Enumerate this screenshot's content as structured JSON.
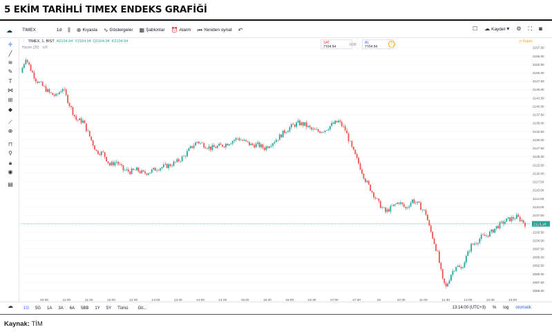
{
  "heading": "5 EKİM TARİHLİ TIMEX ENDEKS GRAFİĞİ",
  "source_label": "Kaynak:",
  "source_value": "TİM",
  "toolbar": {
    "symbol": "TIMEX",
    "interval": "1d",
    "compare": "Kıyasla",
    "indicators": "Göstergeler",
    "templates": "Şablonlar",
    "alert": "Alarm",
    "replay": "Yeniden oynat",
    "save": "Kaydet"
  },
  "legend": {
    "title": "TIMEX, 1, BIST",
    "open": "A2104.94",
    "high": "Y2104.94",
    "low": "D2104.94",
    "close": "K2104.94",
    "ma": "Hacim (20)",
    "extra": "n/A"
  },
  "trade": {
    "sell_label": "SAT",
    "sell_value": "2104.94",
    "spread": "0.00",
    "buy_label": "AL",
    "buy_value": "2104.94",
    "market_status": "Kapalı"
  },
  "bottom": {
    "ranges": [
      "1G",
      "5G",
      "1A",
      "3A",
      "6A",
      "5BB",
      "1Y",
      "5Y",
      "Tümü"
    ],
    "goto": "Git...",
    "time": "13:14:00 (UTC+3)",
    "pct": "%",
    "log": "log",
    "auto": "otomatik"
  },
  "colors": {
    "up": "#26a69a",
    "down": "#ef5350",
    "price_line": "#26a69a",
    "grid": "#f0f3fa"
  },
  "chart_data": {
    "type": "candlestick",
    "symbol": "TIMEX, 1, BIST",
    "last_price": 2104.94,
    "y_ticks": [
      2157.5,
      2155.0,
      2152.5,
      2150.0,
      2147.5,
      2145.0,
      2142.5,
      2140.0,
      2137.5,
      2135.0,
      2132.5,
      2130.0,
      2127.5,
      2125.0,
      2122.5,
      2120.0,
      2117.5,
      2115.0,
      2112.5,
      2110.0,
      2107.5,
      2105.0,
      2102.5,
      2100.0,
      2097.5,
      2095.0,
      2092.5,
      2090.0,
      2087.5,
      2085.0
    ],
    "x_ticks": [
      "10:30",
      "11:00",
      "11:30",
      "12:00",
      "12:30",
      "13:00",
      "13:30",
      "14:00",
      "14:30",
      "15:00",
      "15:30",
      "16:00",
      "16:30",
      "17:00",
      "17:30",
      "18",
      "10:30",
      "11:00",
      "11:30",
      "12:00",
      "12:30",
      "13:00"
    ],
    "ylim": [
      2083.0,
      2158.5
    ],
    "close_path": [
      [
        0,
        2150.0
      ],
      [
        3,
        2154.5
      ],
      [
        6,
        2151.0
      ],
      [
        9,
        2148.0
      ],
      [
        13,
        2146.0
      ],
      [
        17,
        2144.0
      ],
      [
        21,
        2143.0
      ],
      [
        25,
        2145.5
      ],
      [
        29,
        2140.5
      ],
      [
        33,
        2136.0
      ],
      [
        37,
        2135.5
      ],
      [
        41,
        2131.0
      ],
      [
        45,
        2126.5
      ],
      [
        49,
        2126.0
      ],
      [
        53,
        2122.5
      ],
      [
        57,
        2123.5
      ],
      [
        61,
        2121.0
      ],
      [
        65,
        2120.5
      ],
      [
        69,
        2121.0
      ],
      [
        73,
        2120.0
      ],
      [
        77,
        2120.5
      ],
      [
        81,
        2121.5
      ],
      [
        85,
        2122.0
      ],
      [
        89,
        2122.5
      ],
      [
        93,
        2123.5
      ],
      [
        97,
        2125.0
      ],
      [
        101,
        2127.5
      ],
      [
        105,
        2129.5
      ],
      [
        109,
        2128.5
      ],
      [
        113,
        2127.5
      ],
      [
        117,
        2128.0
      ],
      [
        121,
        2128.5
      ],
      [
        125,
        2129.5
      ],
      [
        129,
        2130.5
      ],
      [
        133,
        2129.5
      ],
      [
        137,
        2128.5
      ],
      [
        141,
        2128.5
      ],
      [
        145,
        2127.5
      ],
      [
        149,
        2129.0
      ],
      [
        153,
        2130.5
      ],
      [
        157,
        2132.5
      ],
      [
        161,
        2134.0
      ],
      [
        165,
        2135.0
      ],
      [
        169,
        2134.5
      ],
      [
        173,
        2133.0
      ],
      [
        177,
        2132.5
      ],
      [
        181,
        2133.0
      ],
      [
        185,
        2134.5
      ],
      [
        189,
        2135.5
      ],
      [
        193,
        2133.0
      ],
      [
        197,
        2127.5
      ],
      [
        201,
        2123.0
      ],
      [
        205,
        2118.0
      ],
      [
        209,
        2114.5
      ],
      [
        213,
        2111.0
      ],
      [
        217,
        2108.5
      ],
      [
        221,
        2110.0
      ],
      [
        225,
        2111.5
      ],
      [
        229,
        2109.5
      ],
      [
        233,
        2112.0
      ],
      [
        237,
        2110.5
      ],
      [
        241,
        2108.0
      ],
      [
        243,
        2104.0
      ],
      [
        245,
        2101.0
      ],
      [
        248,
        2096.0
      ],
      [
        251,
        2088.0
      ],
      [
        253,
        2086.0
      ],
      [
        256,
        2090.0
      ],
      [
        259,
        2092.5
      ],
      [
        262,
        2091.5
      ],
      [
        265,
        2095.0
      ],
      [
        268,
        2098.5
      ],
      [
        271,
        2099.5
      ],
      [
        274,
        2101.0
      ],
      [
        277,
        2101.5
      ],
      [
        280,
        2102.5
      ],
      [
        283,
        2104.0
      ],
      [
        286,
        2105.0
      ],
      [
        289,
        2106.0
      ],
      [
        292,
        2106.5
      ],
      [
        295,
        2107.0
      ],
      [
        298,
        2106.0
      ],
      [
        300,
        2104.94
      ]
    ]
  }
}
